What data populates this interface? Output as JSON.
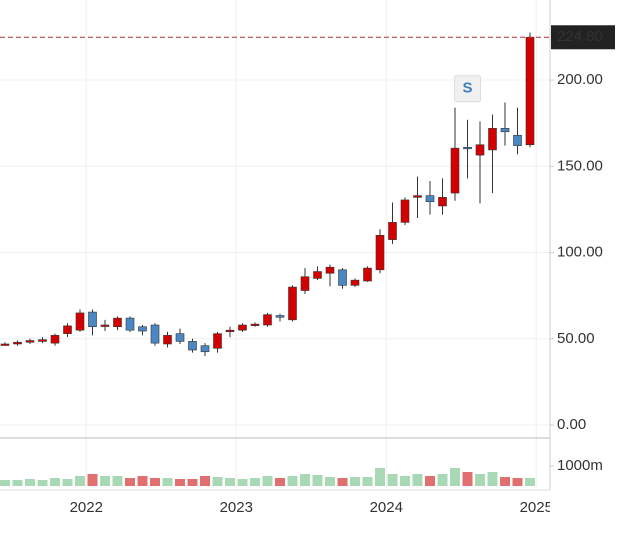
{
  "chart_data": {
    "type": "candlestick",
    "categories": [
      null,
      null,
      null,
      null,
      null,
      null,
      null,
      "2022",
      null,
      null,
      null,
      null,
      null,
      null,
      null,
      null,
      null,
      null,
      null,
      "2023",
      null,
      null,
      null,
      null,
      null,
      null,
      null,
      null,
      null,
      null,
      null,
      "2024",
      null,
      null,
      null,
      null,
      null,
      null,
      null,
      null,
      null,
      null,
      null,
      "2025"
    ],
    "open": [
      46.5,
      47,
      48,
      48.5,
      47.5,
      53,
      55,
      65.5,
      57.5,
      57,
      62,
      57,
      58,
      47,
      53,
      48.5,
      46,
      44.5,
      54.5,
      55,
      58,
      58,
      63.5,
      61,
      78,
      85,
      88,
      90,
      81,
      83.5,
      90,
      107.5,
      117.5,
      132,
      133,
      127,
      134.5,
      161,
      156.5,
      159.5,
      172,
      168,
      162.5,
      null
    ],
    "high": [
      48,
      49,
      50,
      51,
      53,
      59,
      67,
      67,
      61,
      63,
      63,
      58,
      59,
      54,
      56,
      50,
      47.5,
      54,
      57,
      59,
      59.5,
      65,
      64.5,
      81,
      91,
      92,
      93,
      91,
      85,
      92,
      113.5,
      129,
      132,
      144,
      141.5,
      143,
      184,
      177,
      176,
      180,
      187,
      184,
      227.5,
      null
    ],
    "low": [
      46,
      46,
      47,
      47.5,
      46,
      51,
      54,
      52,
      54.5,
      55,
      54,
      52,
      46,
      45,
      47,
      42,
      40,
      42,
      51,
      54,
      57,
      57,
      60,
      60,
      76,
      84,
      80.5,
      79,
      80,
      83,
      88,
      105,
      116,
      120,
      122,
      122,
      130,
      143,
      128.5,
      134.5,
      162,
      157,
      161,
      null
    ],
    "close": [
      47,
      48,
      49,
      49.5,
      52,
      57.5,
      65,
      57,
      58,
      62,
      55,
      54.5,
      47.5,
      52,
      48.5,
      43.5,
      42.5,
      53,
      55,
      58,
      58.5,
      64,
      62.5,
      80,
      86,
      89,
      91.5,
      81,
      84,
      91,
      110,
      117.5,
      130.5,
      133,
      129.5,
      132,
      160.5,
      160.5,
      162.5,
      172,
      170,
      162,
      224.8,
      null
    ],
    "up_color": "#d40000",
    "down_color": "#4a88c4",
    "ylim": [
      -7.5,
      246.4
    ],
    "yticks": [
      {
        "value": 0,
        "label": "0.00"
      },
      {
        "value": 50,
        "label": "50.00"
      },
      {
        "value": 100,
        "label": "100.00"
      },
      {
        "value": 150,
        "label": "150.00"
      },
      {
        "value": 200,
        "label": "200.00"
      }
    ],
    "last_price": {
      "value": 224.8,
      "label": "224.80"
    },
    "annotation": {
      "text": "S",
      "at": 37
    },
    "grid": true,
    "volume": {
      "values": [
        300,
        300,
        350,
        300,
        400,
        350,
        500,
        600,
        500,
        500,
        400,
        500,
        400,
        400,
        350,
        350,
        500,
        450,
        400,
        350,
        400,
        500,
        400,
        500,
        600,
        550,
        450,
        400,
        450,
        450,
        900,
        600,
        500,
        600,
        500,
        600,
        900,
        700,
        600,
        700,
        450,
        400,
        400,
        null
      ],
      "up_color": "#a9d9b4",
      "down_color": "#e07070",
      "ylim": [
        0,
        2300
      ],
      "yticks": [
        {
          "value": 1000,
          "label": "1000m"
        }
      ]
    }
  }
}
